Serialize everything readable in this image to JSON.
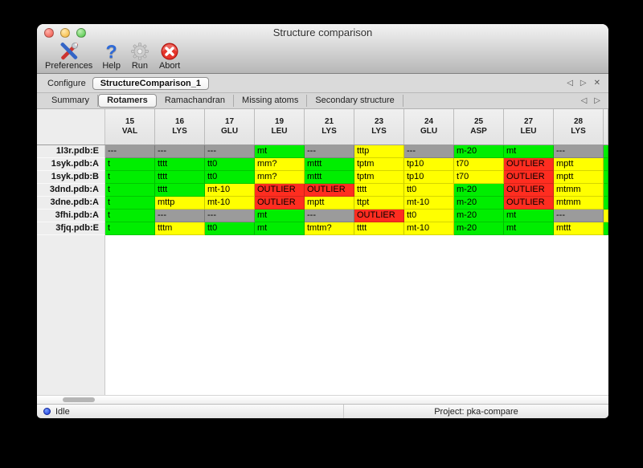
{
  "window": {
    "title": "Structure comparison"
  },
  "toolbar": {
    "items": [
      {
        "label": "Preferences"
      },
      {
        "label": "Help"
      },
      {
        "label": "Run"
      },
      {
        "label": "Abort"
      }
    ]
  },
  "icons": {
    "help_glyph": "?",
    "prev": "◁",
    "next": "▷",
    "close": "✕"
  },
  "configure": {
    "label": "Configure",
    "value": "StructureComparison_1"
  },
  "tabs": {
    "items": [
      {
        "label": "Summary",
        "selected": false
      },
      {
        "label": "Rotamers",
        "selected": true
      },
      {
        "label": "Ramachandran",
        "selected": false
      },
      {
        "label": "Missing atoms",
        "selected": false
      },
      {
        "label": "Secondary structure",
        "selected": false
      }
    ]
  },
  "colors": {
    "ok": "#00ee00",
    "warn": "#ffff00",
    "outlier": "#ff2d20",
    "missing": "#9b9b9b"
  },
  "table": {
    "columns": [
      {
        "num": "15",
        "res": "VAL"
      },
      {
        "num": "16",
        "res": "LYS"
      },
      {
        "num": "17",
        "res": "GLU"
      },
      {
        "num": "19",
        "res": "LEU"
      },
      {
        "num": "21",
        "res": "LYS"
      },
      {
        "num": "23",
        "res": "LYS"
      },
      {
        "num": "24",
        "res": "GLU"
      },
      {
        "num": "25",
        "res": "ASP"
      },
      {
        "num": "27",
        "res": "LEU"
      },
      {
        "num": "28",
        "res": "LYS"
      },
      {
        "num": "",
        "res": ""
      }
    ],
    "rows": [
      {
        "label": "1l3r.pdb:E",
        "cells": [
          {
            "text": "---",
            "status": "missing"
          },
          {
            "text": "---",
            "status": "missing"
          },
          {
            "text": "---",
            "status": "missing"
          },
          {
            "text": "mt",
            "status": "ok"
          },
          {
            "text": "---",
            "status": "missing"
          },
          {
            "text": "tttp",
            "status": "warn"
          },
          {
            "text": "---",
            "status": "missing"
          },
          {
            "text": "m-20",
            "status": "ok"
          },
          {
            "text": "mt",
            "status": "ok"
          },
          {
            "text": "---",
            "status": "missing"
          },
          {
            "text": "",
            "status": "ok"
          }
        ]
      },
      {
        "label": "1syk.pdb:A",
        "cells": [
          {
            "text": "t",
            "status": "ok"
          },
          {
            "text": "tttt",
            "status": "ok"
          },
          {
            "text": "tt0",
            "status": "ok"
          },
          {
            "text": "mm?",
            "status": "warn"
          },
          {
            "text": "mttt",
            "status": "ok"
          },
          {
            "text": "tptm",
            "status": "warn"
          },
          {
            "text": "tp10",
            "status": "warn"
          },
          {
            "text": "t70",
            "status": "warn"
          },
          {
            "text": "OUTLIER",
            "status": "outlier"
          },
          {
            "text": "mptt",
            "status": "warn"
          },
          {
            "text": "",
            "status": "ok"
          }
        ]
      },
      {
        "label": "1syk.pdb:B",
        "cells": [
          {
            "text": "t",
            "status": "ok"
          },
          {
            "text": "tttt",
            "status": "ok"
          },
          {
            "text": "tt0",
            "status": "ok"
          },
          {
            "text": "mm?",
            "status": "warn"
          },
          {
            "text": "mttt",
            "status": "ok"
          },
          {
            "text": "tptm",
            "status": "warn"
          },
          {
            "text": "tp10",
            "status": "warn"
          },
          {
            "text": "t70",
            "status": "warn"
          },
          {
            "text": "OUTLIER",
            "status": "outlier"
          },
          {
            "text": "mptt",
            "status": "warn"
          },
          {
            "text": "",
            "status": "ok"
          }
        ]
      },
      {
        "label": "3dnd.pdb:A",
        "cells": [
          {
            "text": "t",
            "status": "ok"
          },
          {
            "text": "tttt",
            "status": "ok"
          },
          {
            "text": "mt-10",
            "status": "warn"
          },
          {
            "text": "OUTLIER",
            "status": "outlier"
          },
          {
            "text": "OUTLIER",
            "status": "outlier"
          },
          {
            "text": "tttt",
            "status": "warn"
          },
          {
            "text": "tt0",
            "status": "warn"
          },
          {
            "text": "m-20",
            "status": "ok"
          },
          {
            "text": "OUTLIER",
            "status": "outlier"
          },
          {
            "text": "mtmm",
            "status": "warn"
          },
          {
            "text": "",
            "status": "ok"
          }
        ]
      },
      {
        "label": "3dne.pdb:A",
        "cells": [
          {
            "text": "t",
            "status": "ok"
          },
          {
            "text": "mttp",
            "status": "warn"
          },
          {
            "text": "mt-10",
            "status": "warn"
          },
          {
            "text": "OUTLIER",
            "status": "outlier"
          },
          {
            "text": "mptt",
            "status": "warn"
          },
          {
            "text": "ttpt",
            "status": "warn"
          },
          {
            "text": "mt-10",
            "status": "warn"
          },
          {
            "text": "m-20",
            "status": "ok"
          },
          {
            "text": "OUTLIER",
            "status": "outlier"
          },
          {
            "text": "mtmm",
            "status": "warn"
          },
          {
            "text": "",
            "status": "ok"
          }
        ]
      },
      {
        "label": "3fhi.pdb:A",
        "cells": [
          {
            "text": "t",
            "status": "ok"
          },
          {
            "text": "---",
            "status": "missing"
          },
          {
            "text": "---",
            "status": "missing"
          },
          {
            "text": "mt",
            "status": "ok"
          },
          {
            "text": "---",
            "status": "missing"
          },
          {
            "text": "OUTLIER",
            "status": "outlier"
          },
          {
            "text": "tt0",
            "status": "warn"
          },
          {
            "text": "m-20",
            "status": "ok"
          },
          {
            "text": "mt",
            "status": "ok"
          },
          {
            "text": "---",
            "status": "missing"
          },
          {
            "text": "",
            "status": "warn"
          }
        ]
      },
      {
        "label": "3fjq.pdb:E",
        "cells": [
          {
            "text": "t",
            "status": "ok"
          },
          {
            "text": "tttm",
            "status": "warn"
          },
          {
            "text": "tt0",
            "status": "ok"
          },
          {
            "text": "mt",
            "status": "ok"
          },
          {
            "text": "tmtm?",
            "status": "warn"
          },
          {
            "text": "tttt",
            "status": "warn"
          },
          {
            "text": "mt-10",
            "status": "warn"
          },
          {
            "text": "m-20",
            "status": "ok"
          },
          {
            "text": "mt",
            "status": "ok"
          },
          {
            "text": "mttt",
            "status": "warn"
          },
          {
            "text": "",
            "status": "ok"
          }
        ]
      }
    ]
  },
  "statusbar": {
    "state": "Idle",
    "project": "Project: pka-compare"
  }
}
